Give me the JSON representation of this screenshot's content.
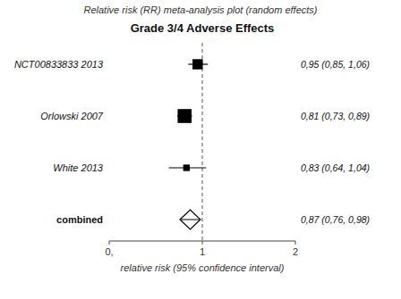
{
  "chart_data": {
    "type": "forest",
    "title": "Grade 3/4 Adverse Effects",
    "subtitle": "Relative risk (RR) meta-analysis plot (random effects)",
    "x_label": "relative risk (95% confidence interval)",
    "categories": [
      "NCT00833833 2013",
      "Orlowski 2007",
      "White 2013",
      "combined"
    ],
    "values": [
      0.95,
      0.81,
      0.83,
      0.87
    ],
    "ci_low": [
      0.85,
      0.73,
      0.64,
      0.76
    ],
    "ci_high": [
      1.06,
      0.89,
      1.04,
      0.98
    ],
    "value_labels": [
      "0,95 (0,85, 1,06)",
      "0,81 (0,73, 0,89)",
      "0,83 (0,64, 1,04)",
      "0,87 (0,76, 0,98)"
    ],
    "sizes": [
      0.11,
      0.15,
      0.07,
      null
    ],
    "reference_line": 1.0,
    "xlim": [
      0.0,
      2.0
    ],
    "xticks": [
      {
        "value": 0,
        "label": "0,"
      },
      1,
      2
    ],
    "color": "#000000"
  }
}
